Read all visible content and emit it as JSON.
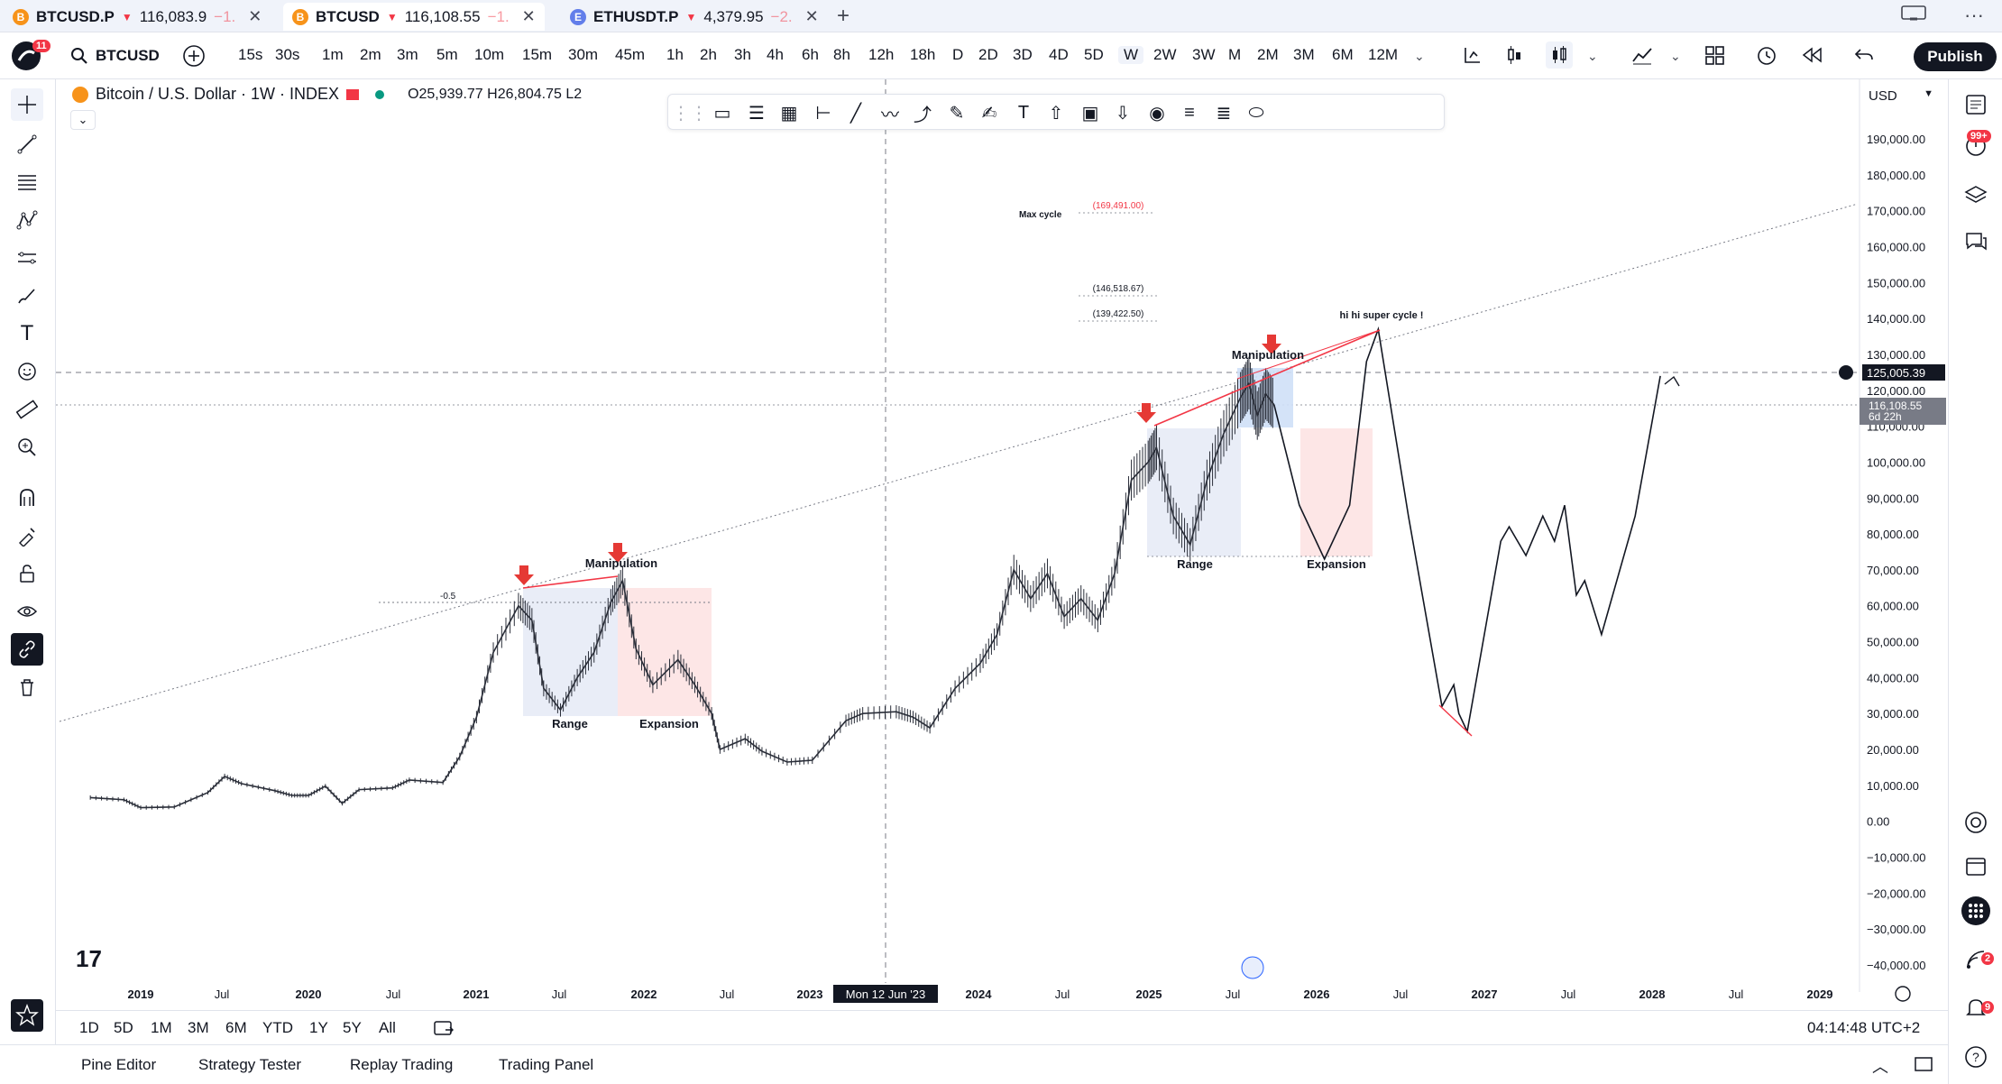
{
  "tabs": [
    {
      "symbol": "BTCUSD.P",
      "price": "116,083.9",
      "change": "−1.",
      "coin": "B"
    },
    {
      "symbol": "BTCUSD",
      "price": "116,108.55",
      "change": "−1.",
      "coin": "B"
    },
    {
      "symbol": "ETHUSDT.P",
      "price": "4,379.95",
      "change": "−2.",
      "coin": "E"
    }
  ],
  "toolbar": {
    "notifications": "11",
    "symbol": "BTCUSD",
    "intervals": [
      "15s",
      "30s",
      "1m",
      "2m",
      "3m",
      "5m",
      "10m",
      "15m",
      "30m",
      "45m",
      "1h",
      "2h",
      "3h",
      "4h",
      "6h",
      "8h",
      "12h",
      "18h",
      "D",
      "2D",
      "3D",
      "4D",
      "5D",
      "W",
      "2W",
      "3W",
      "M",
      "2M",
      "3M",
      "6M",
      "12M"
    ],
    "selected_interval": "W",
    "publish_label": "Publish"
  },
  "legend": {
    "title": "Bitcoin / U.S. Dollar · 1W · INDEX",
    "ohlc": "O25,939.77  H26,804.75  L2"
  },
  "price_axis": {
    "currency": "USD",
    "labels": [
      "190,000.00",
      "180,000.00",
      "170,000.00",
      "160,000.00",
      "150,000.00",
      "140,000.00",
      "130,000.00",
      "120,000.00",
      "110,000.00",
      "100,000.00",
      "90,000.00",
      "80,000.00",
      "70,000.00",
      "60,000.00",
      "50,000.00",
      "40,000.00",
      "30,000.00",
      "20,000.00",
      "10,000.00",
      "0.00",
      "−10,000.00",
      "−20,000.00",
      "−30,000.00",
      "−40,000.00"
    ],
    "crosshair_price": "125,005.39",
    "last_price": "116,108.55",
    "countdown": "6d 22h"
  },
  "time_axis": {
    "labels": [
      "2019",
      "Jul",
      "2020",
      "Jul",
      "2021",
      "Jul",
      "2022",
      "Jul",
      "2023",
      "2024",
      "Jul",
      "2025",
      "Jul",
      "2026",
      "Jul",
      "2027",
      "Jul",
      "2028",
      "Jul",
      "2029"
    ],
    "crosshair_date": "Mon 12 Jun '23"
  },
  "annotations": {
    "max_cycle": "Max cycle",
    "max_cycle_value": "(169,491.00)",
    "level_1": "(146,518.67)",
    "level_2": "(139,422.50)",
    "super_cycle": "hi hi super cycle !",
    "manipulation": "Manipulation",
    "range": "Range",
    "expansion": "Expansion",
    "fib_half": "-0.5"
  },
  "bottom": {
    "ranges": [
      "1D",
      "5D",
      "1M",
      "3M",
      "6M",
      "YTD",
      "1Y",
      "5Y",
      "All"
    ],
    "clock": "04:14:48 UTC+2",
    "panels": [
      "Pine Editor",
      "Strategy Tester",
      "Replay Trading",
      "Trading Panel"
    ]
  },
  "right_badges": {
    "alerts": "99+",
    "notif_a": "2",
    "notif_b": "9"
  },
  "colors": {
    "accent": "#2962ff",
    "down": "#f23645",
    "arrow": "#e53935",
    "range_box": "#dfe6f3",
    "expansion_box": "#fde0e0",
    "manip_box": "#cfe0f7"
  }
}
